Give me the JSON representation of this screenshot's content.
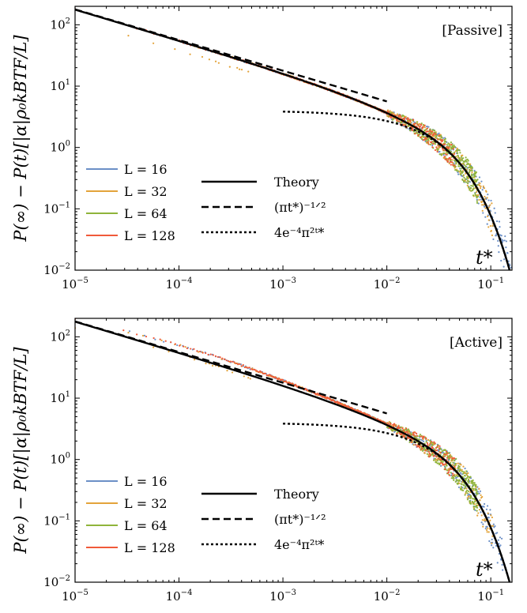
{
  "colors": {
    "L16": "#6b8fc6",
    "L32": "#e3a33a",
    "L64": "#8fb43a",
    "L128": "#f05a3a",
    "theory": "#000000"
  },
  "chart_data": [
    {
      "type": "line",
      "scale": {
        "x": "log",
        "y": "log"
      },
      "xlim": [
        1e-05,
        0.16
      ],
      "ylim": [
        0.01,
        200
      ],
      "x_ticks": [
        {
          "base": "10",
          "exp": "−5"
        },
        {
          "base": "10",
          "exp": "−4"
        },
        {
          "base": "10",
          "exp": "−3"
        },
        {
          "base": "10",
          "exp": "−2"
        },
        {
          "base": "10",
          "exp": "−1"
        }
      ],
      "y_ticks": [
        {
          "base": "10",
          "exp": "−2"
        },
        {
          "base": "10",
          "exp": "−1"
        },
        {
          "base": "10",
          "exp": "0"
        },
        {
          "base": "10",
          "exp": "1"
        },
        {
          "base": "10",
          "exp": "2"
        }
      ],
      "ylabel": "P(∞) − P(t)[|α|ρ₀k_BT_F/L]",
      "xlabel": "t*",
      "tag": "[Passive]",
      "legend": {
        "placement": "lower-left",
        "data_entries": [
          "L = 16",
          "L = 32",
          "L = 64",
          "L = 128"
        ],
        "curve_entries": [
          "Theory",
          "(πt*)^−1/2",
          "4e^−4π²t*"
        ]
      },
      "series": [
        {
          "name": "L = 16",
          "x": [
            1e-05,
            0.001,
            0.01,
            0.04,
            0.07,
            0.1,
            0.13,
            0.16
          ],
          "y": [
            180,
            17.8,
            4.55,
            0.96,
            0.3,
            0.11,
            0.035,
            0.012
          ]
        },
        {
          "name": "L = 32",
          "x": [
            1e-05,
            0.0001,
            0.001,
            0.01,
            0.04,
            0.07,
            0.1
          ],
          "y": [
            180,
            56.4,
            17.8,
            4.55,
            0.96,
            0.25,
            0.05
          ]
        },
        {
          "name": "L = 64",
          "x": [
            0.01,
            0.03,
            0.05,
            0.07
          ],
          "y": [
            4.55,
            1.5,
            0.6,
            0.17
          ]
        },
        {
          "name": "L = 128",
          "x": [
            1e-05,
            0.0001,
            0.001,
            0.01,
            0.02,
            0.04
          ],
          "y": [
            180,
            56.4,
            17.8,
            4.55,
            2.5,
            0.96
          ]
        }
      ]
    },
    {
      "type": "line",
      "scale": {
        "x": "log",
        "y": "log"
      },
      "xlim": [
        1e-05,
        0.16
      ],
      "ylim": [
        0.01,
        200
      ],
      "x_ticks": [
        {
          "base": "10",
          "exp": "−5"
        },
        {
          "base": "10",
          "exp": "−4"
        },
        {
          "base": "10",
          "exp": "−3"
        },
        {
          "base": "10",
          "exp": "−2"
        },
        {
          "base": "10",
          "exp": "−1"
        }
      ],
      "y_ticks": [
        {
          "base": "10",
          "exp": "−2"
        },
        {
          "base": "10",
          "exp": "−1"
        },
        {
          "base": "10",
          "exp": "0"
        },
        {
          "base": "10",
          "exp": "1"
        },
        {
          "base": "10",
          "exp": "2"
        }
      ],
      "ylabel": "P(∞) − P(t)[|α|ρ₀k_BT_F/L]",
      "xlabel": "t*",
      "tag": "[Active]",
      "legend": {
        "placement": "lower-left",
        "data_entries": [
          "L = 16",
          "L = 32",
          "L = 64",
          "L = 128"
        ],
        "curve_entries": [
          "Theory",
          "(πt*)^−1/2",
          "4e^−4π²t*"
        ]
      },
      "series": [
        {
          "name": "L = 16",
          "x": [
            1e-05,
            0.001,
            0.01,
            0.04,
            0.07,
            0.1,
            0.13
          ],
          "y": [
            180,
            19,
            5.0,
            1.1,
            0.35,
            0.12,
            0.04
          ]
        },
        {
          "name": "L = 32",
          "x": [
            1.5e-05,
            0.0001,
            0.001,
            0.01,
            0.04,
            0.07,
            0.1
          ],
          "y": [
            165,
            62,
            19,
            5.0,
            1.1,
            0.3,
            0.06
          ]
        },
        {
          "name": "L = 64",
          "x": [
            0.0002,
            0.001,
            0.01,
            0.03,
            0.05,
            0.07
          ],
          "y": [
            48,
            19,
            5.0,
            1.6,
            0.65,
            0.2
          ]
        },
        {
          "name": "L = 128",
          "x": [
            1e-05,
            0.0001,
            0.001,
            0.01,
            0.02,
            0.04
          ],
          "y": [
            180,
            62,
            19,
            5.0,
            2.7,
            1.1
          ]
        }
      ]
    }
  ]
}
